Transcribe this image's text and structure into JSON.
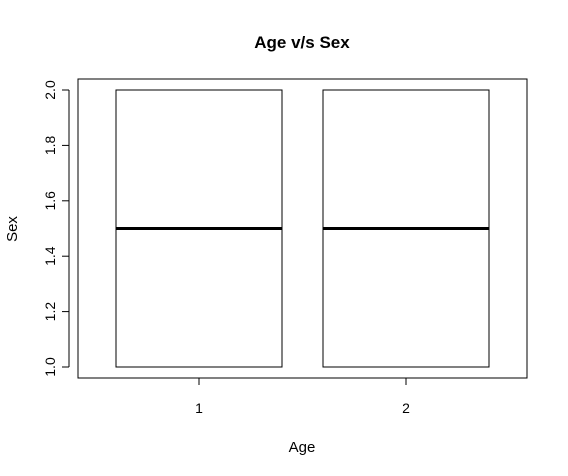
{
  "chart_data": {
    "type": "boxplot",
    "title": "Age v/s Sex",
    "xlabel": "Age",
    "ylabel": "Sex",
    "categories": [
      "1",
      "2"
    ],
    "ylim": [
      1.0,
      2.0
    ],
    "yticks": [
      "1.0",
      "1.2",
      "1.4",
      "1.6",
      "1.8",
      "2.0"
    ],
    "boxes": [
      {
        "category": "1",
        "min": 1.0,
        "q1": 1.0,
        "median": 1.5,
        "q3": 2.0,
        "max": 2.0
      },
      {
        "category": "2",
        "min": 1.0,
        "q1": 1.0,
        "median": 1.5,
        "q3": 2.0,
        "max": 2.0
      }
    ],
    "grid": false,
    "colors": {
      "box_fill": "#ffffff",
      "stroke": "#000000"
    }
  }
}
